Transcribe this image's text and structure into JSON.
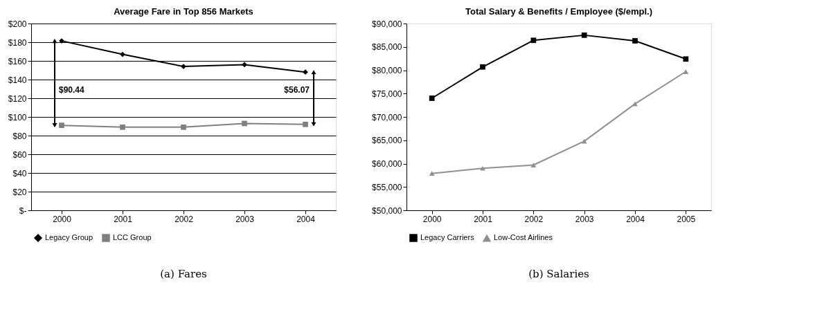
{
  "chart_data": [
    {
      "type": "line",
      "title": "Average Fare in Top 856 Markets",
      "categories": [
        "2000",
        "2001",
        "2002",
        "2003",
        "2004"
      ],
      "series": [
        {
          "name": "Legacy Group",
          "color": "#000000",
          "marker": "diamond",
          "values": [
            181.4,
            167,
            154,
            156,
            148
          ]
        },
        {
          "name": "LCC Group",
          "color": "#808080",
          "marker": "square",
          "values": [
            91,
            89,
            89,
            93,
            92
          ]
        }
      ],
      "ylim": [
        0,
        200
      ],
      "yticks": [
        {
          "value": 0,
          "label": "$-"
        },
        {
          "value": 20,
          "label": "$20"
        },
        {
          "value": 40,
          "label": "$40"
        },
        {
          "value": 60,
          "label": "$60"
        },
        {
          "value": 80,
          "label": "$80"
        },
        {
          "value": 100,
          "label": "$100"
        },
        {
          "value": 120,
          "label": "$120"
        },
        {
          "value": 140,
          "label": "$140"
        },
        {
          "value": 160,
          "label": "$160"
        },
        {
          "value": 180,
          "label": "$180"
        },
        {
          "value": 200,
          "label": "$200"
        }
      ],
      "grid": "y",
      "legend": "bottom",
      "annotations": [
        "$90.44",
        "$56.07",
        "(a) Fares"
      ]
    },
    {
      "type": "line",
      "title": "Total Salary & Benefits / Employee ($/empl.)",
      "categories": [
        "2000",
        "2001",
        "2002",
        "2003",
        "2004",
        "2005"
      ],
      "series": [
        {
          "name": "Legacy Carriers",
          "color": "#000000",
          "marker": "square",
          "values": [
            74000,
            80700,
            86400,
            87500,
            86300,
            82400
          ]
        },
        {
          "name": "Low-Cost Airlines",
          "color": "#909090",
          "marker": "triangle",
          "values": [
            57900,
            59000,
            59700,
            64800,
            72800,
            79700
          ]
        }
      ],
      "ylim": [
        50000,
        90000
      ],
      "yticks": [
        {
          "value": 50000,
          "label": "$50,000"
        },
        {
          "value": 55000,
          "label": "$55,000"
        },
        {
          "value": 60000,
          "label": "$60,000"
        },
        {
          "value": 65000,
          "label": "$65,000"
        },
        {
          "value": 70000,
          "label": "$70,000"
        },
        {
          "value": 75000,
          "label": "$75,000"
        },
        {
          "value": 80000,
          "label": "$80,000"
        },
        {
          "value": 85000,
          "label": "$85,000"
        },
        {
          "value": 90000,
          "label": "$90,000"
        }
      ],
      "grid": false,
      "legend": "bottom",
      "annotations": [
        "(b) Salaries"
      ]
    }
  ]
}
